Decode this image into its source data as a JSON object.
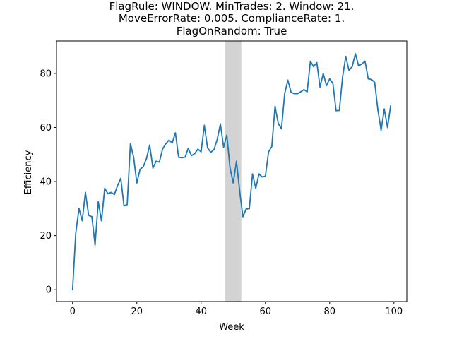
{
  "chart_data": {
    "type": "line",
    "title_lines": [
      "FlagRule: WINDOW. MinTrades: 2. Window: 21.",
      "MoveErrorRate: 0.005. ComplianceRate: 1.",
      "FlagOnRandom: True"
    ],
    "xlabel": "Week",
    "ylabel": "Efficiency",
    "xlim": [
      -5,
      104
    ],
    "ylim": [
      -4.4,
      92
    ],
    "xticks": [
      0,
      20,
      40,
      60,
      80,
      100
    ],
    "yticks": [
      0,
      20,
      40,
      60,
      80
    ],
    "grid": false,
    "shaded_span": [
      47.5,
      52.5
    ],
    "series": [
      {
        "color": "#1f77b4",
        "x": [
          0,
          1,
          2,
          3,
          4,
          5,
          6,
          7,
          8,
          9,
          10,
          11,
          12,
          13,
          14,
          15,
          16,
          17,
          18,
          19,
          20,
          21,
          22,
          23,
          24,
          25,
          26,
          27,
          28,
          29,
          30,
          31,
          32,
          33,
          34,
          35,
          36,
          37,
          38,
          39,
          40,
          41,
          42,
          43,
          44,
          45,
          46,
          47,
          48,
          49,
          50,
          51,
          52,
          53,
          54,
          55,
          56,
          57,
          58,
          59,
          60,
          61,
          62,
          63,
          64,
          65,
          66,
          67,
          68,
          69,
          70,
          71,
          72,
          73,
          74,
          75,
          76,
          77,
          78,
          79,
          80,
          81,
          82,
          83,
          84,
          85,
          86,
          87,
          88,
          89,
          90,
          91,
          92,
          93,
          94,
          95,
          96,
          97,
          98,
          99
        ],
        "y": [
          0,
          21,
          30,
          25.5,
          36,
          27.5,
          27,
          16.5,
          32.5,
          25.5,
          37.5,
          35.5,
          36,
          35.2,
          38.5,
          41.2,
          31,
          31.5,
          54,
          49,
          39.5,
          44.5,
          45.5,
          48.5,
          53.5,
          45,
          47.5,
          47.2,
          52,
          54,
          55.3,
          54.3,
          58,
          49,
          48.8,
          49,
          52.3,
          49.6,
          50.3,
          52,
          51,
          60.8,
          52.5,
          50.8,
          51.8,
          55.5,
          61.3,
          52.7,
          57.2,
          45,
          39.5,
          47.5,
          36.5,
          27,
          29.8,
          30,
          42.8,
          37.5,
          42.8,
          41.7,
          42,
          51,
          53,
          67.8,
          61.5,
          59.5,
          72.5,
          77.5,
          73,
          72.5,
          72.5,
          73.2,
          74,
          73.2,
          84.5,
          82.5,
          84,
          75,
          80,
          75.5,
          78,
          76.3,
          66.2,
          66.3,
          78.5,
          86.3,
          81.2,
          82.5,
          87.3,
          82.8,
          83.5,
          84.5,
          78,
          77.8,
          76.7,
          66.5,
          59,
          66.8,
          60,
          68.3
        ]
      }
    ]
  }
}
